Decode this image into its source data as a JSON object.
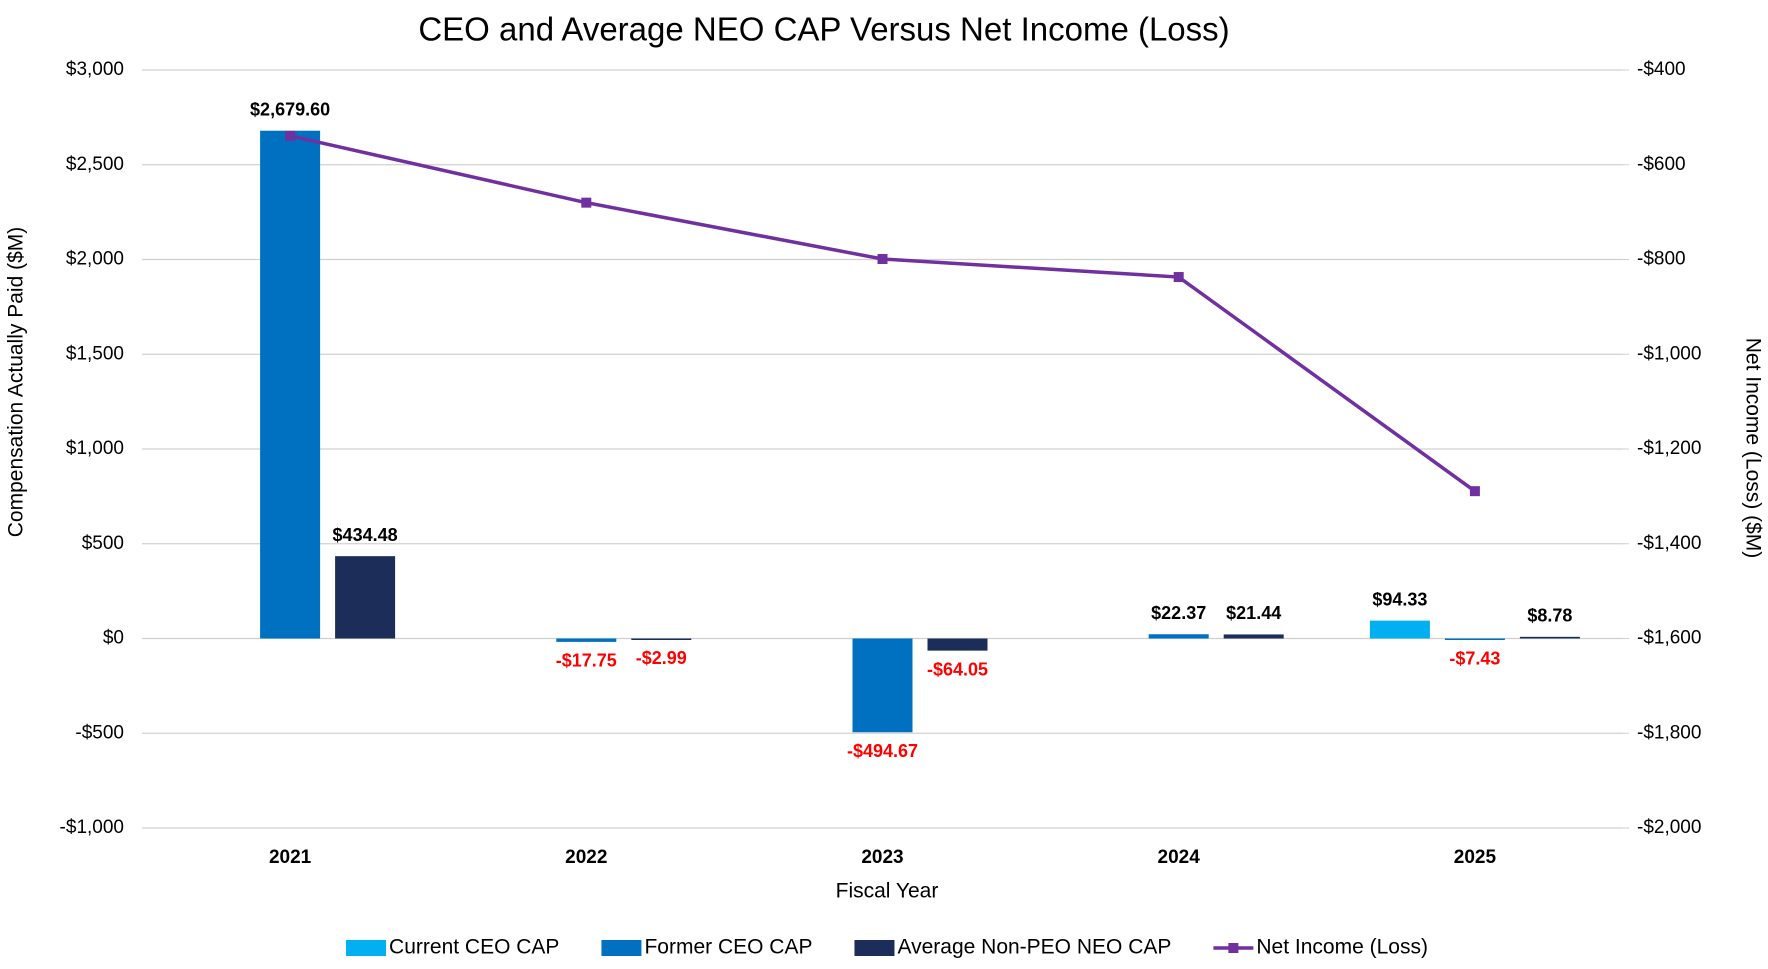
{
  "chart_data": {
    "type": "bar",
    "title": "CEO and Average NEO CAP Versus Net Income (Loss)",
    "x_label": "Fiscal Year",
    "y_label": "Compensation Actually Paid ($M)",
    "y2_label": "Net Income (Loss) ($M)",
    "categories": [
      "2021",
      "2022",
      "2023",
      "2024",
      "2025"
    ],
    "series": [
      {
        "name": "Current CEO CAP",
        "type": "bar",
        "color": "#00B0F0",
        "values": [
          null,
          null,
          null,
          null,
          94.33
        ],
        "value_labels": [
          null,
          null,
          null,
          null,
          "$94.33"
        ]
      },
      {
        "name": "Former CEO CAP",
        "type": "bar",
        "color": "#0070C0",
        "values": [
          2679.6,
          -17.75,
          -494.67,
          22.37,
          -7.43
        ],
        "value_labels": [
          "$2,679.60",
          "-$17.75",
          "-$494.67",
          "$22.37",
          "-$7.43"
        ]
      },
      {
        "name": "Average Non-PEO NEO CAP",
        "type": "bar",
        "color": "#1B2D58",
        "values": [
          434.48,
          -2.99,
          -64.05,
          21.44,
          8.78
        ],
        "value_labels": [
          "$434.48",
          "-$2.99",
          "-$64.05",
          "$21.44",
          "$8.78"
        ]
      },
      {
        "name": "Net Income (Loss)",
        "type": "line",
        "axis": "y2",
        "color": "#7030A0",
        "values": [
          -539,
          -680,
          -799,
          -837,
          -1289
        ]
      }
    ],
    "ylim": [
      -1000,
      3000
    ],
    "yticks": [
      {
        "value": -1000,
        "label": "-$1,000"
      },
      {
        "value": -500,
        "label": "-$500"
      },
      {
        "value": 0,
        "label": "$0"
      },
      {
        "value": 500,
        "label": "$500"
      },
      {
        "value": 1000,
        "label": "$1,000"
      },
      {
        "value": 1500,
        "label": "$1,500"
      },
      {
        "value": 2000,
        "label": "$2,000"
      },
      {
        "value": 2500,
        "label": "$2,500"
      },
      {
        "value": 3000,
        "label": "$3,000"
      }
    ],
    "y2lim": [
      -2000,
      -400
    ],
    "y2ticks": [
      {
        "value": -2000,
        "label": "-$2,000"
      },
      {
        "value": -1800,
        "label": "-$1,800"
      },
      {
        "value": -1600,
        "label": "-$1,600"
      },
      {
        "value": -1400,
        "label": "-$1,400"
      },
      {
        "value": -1200,
        "label": "-$1,200"
      },
      {
        "value": -1000,
        "label": "-$1,000"
      },
      {
        "value": -800,
        "label": "-$800"
      },
      {
        "value": -600,
        "label": "-$600"
      },
      {
        "value": -400,
        "label": "-$400"
      }
    ],
    "grid": true,
    "legend": "bottom"
  }
}
